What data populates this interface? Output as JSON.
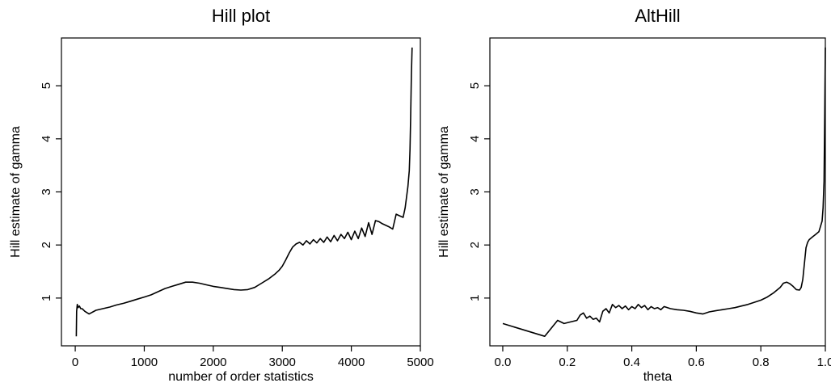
{
  "chart_data": [
    {
      "type": "line",
      "title": "Hill plot",
      "xlabel": "number of order statistics",
      "ylabel": "Hill estimate of gamma",
      "xlim": [
        -200,
        5000
      ],
      "ylim": [
        0.1,
        5.9
      ],
      "xticks": [
        0,
        1000,
        2000,
        3000,
        4000,
        5000
      ],
      "yticks": [
        1,
        2,
        3,
        4,
        5
      ],
      "xtick_labels": [
        "0",
        "1000",
        "2000",
        "3000",
        "4000",
        "5000"
      ],
      "ytick_labels": [
        "1",
        "2",
        "3",
        "4",
        "5"
      ],
      "grid": false,
      "x": [
        15,
        20,
        30,
        40,
        60,
        80,
        100,
        140,
        200,
        300,
        400,
        500,
        600,
        700,
        800,
        900,
        1000,
        1100,
        1200,
        1300,
        1400,
        1500,
        1600,
        1700,
        1800,
        1900,
        2000,
        2100,
        2200,
        2300,
        2400,
        2500,
        2600,
        2700,
        2800,
        2900,
        2950,
        3000,
        3050,
        3100,
        3150,
        3200,
        3250,
        3300,
        3350,
        3400,
        3450,
        3500,
        3550,
        3600,
        3650,
        3700,
        3750,
        3800,
        3850,
        3900,
        3950,
        4000,
        4050,
        4100,
        4150,
        4200,
        4250,
        4300,
        4350,
        4400,
        4450,
        4500,
        4550,
        4600,
        4650,
        4700,
        4750,
        4780,
        4800,
        4820,
        4840,
        4850,
        4860,
        4870,
        4880
      ],
      "y": [
        0.28,
        0.75,
        0.88,
        0.82,
        0.85,
        0.8,
        0.8,
        0.75,
        0.7,
        0.77,
        0.8,
        0.83,
        0.87,
        0.9,
        0.94,
        0.98,
        1.02,
        1.06,
        1.12,
        1.18,
        1.22,
        1.26,
        1.3,
        1.3,
        1.28,
        1.25,
        1.22,
        1.2,
        1.18,
        1.16,
        1.15,
        1.16,
        1.2,
        1.28,
        1.36,
        1.46,
        1.52,
        1.6,
        1.72,
        1.85,
        1.96,
        2.02,
        2.05,
        2.0,
        2.08,
        2.02,
        2.1,
        2.04,
        2.12,
        2.05,
        2.15,
        2.06,
        2.18,
        2.08,
        2.2,
        2.12,
        2.24,
        2.1,
        2.26,
        2.12,
        2.32,
        2.16,
        2.42,
        2.2,
        2.46,
        2.44,
        2.4,
        2.37,
        2.34,
        2.3,
        2.58,
        2.55,
        2.52,
        2.7,
        2.9,
        3.1,
        3.4,
        3.8,
        4.4,
        5.2,
        5.72
      ]
    },
    {
      "type": "line",
      "title": "AltHill",
      "xlabel": "theta",
      "ylabel": "Hill estimate of gamma",
      "xlim": [
        -0.04,
        1.0
      ],
      "ylim": [
        0.1,
        5.9
      ],
      "xticks": [
        0.0,
        0.2,
        0.4,
        0.6,
        0.8,
        1.0
      ],
      "yticks": [
        1,
        2,
        3,
        4,
        5
      ],
      "xtick_labels": [
        "0.0",
        "0.2",
        "0.4",
        "0.6",
        "0.8",
        "1.0"
      ],
      "ytick_labels": [
        "1",
        "2",
        "3",
        "4",
        "5"
      ],
      "grid": false,
      "x": [
        0.0,
        0.13,
        0.17,
        0.19,
        0.21,
        0.23,
        0.24,
        0.25,
        0.26,
        0.27,
        0.28,
        0.29,
        0.3,
        0.31,
        0.32,
        0.33,
        0.34,
        0.35,
        0.36,
        0.37,
        0.38,
        0.39,
        0.4,
        0.41,
        0.42,
        0.43,
        0.44,
        0.45,
        0.46,
        0.47,
        0.48,
        0.49,
        0.5,
        0.52,
        0.54,
        0.56,
        0.58,
        0.6,
        0.62,
        0.64,
        0.66,
        0.68,
        0.7,
        0.72,
        0.74,
        0.76,
        0.78,
        0.8,
        0.82,
        0.84,
        0.86,
        0.87,
        0.88,
        0.89,
        0.9,
        0.91,
        0.92,
        0.925,
        0.93,
        0.935,
        0.94,
        0.945,
        0.95,
        0.96,
        0.97,
        0.98,
        0.985,
        0.99,
        0.993,
        0.996,
        0.998,
        1.0
      ],
      "y": [
        0.52,
        0.28,
        0.58,
        0.52,
        0.55,
        0.58,
        0.68,
        0.72,
        0.62,
        0.66,
        0.6,
        0.62,
        0.55,
        0.75,
        0.8,
        0.72,
        0.88,
        0.82,
        0.86,
        0.8,
        0.85,
        0.78,
        0.84,
        0.8,
        0.88,
        0.82,
        0.86,
        0.78,
        0.84,
        0.8,
        0.82,
        0.78,
        0.84,
        0.8,
        0.78,
        0.77,
        0.75,
        0.72,
        0.7,
        0.74,
        0.76,
        0.78,
        0.8,
        0.82,
        0.85,
        0.88,
        0.92,
        0.96,
        1.02,
        1.1,
        1.2,
        1.28,
        1.3,
        1.27,
        1.22,
        1.16,
        1.15,
        1.2,
        1.35,
        1.65,
        1.95,
        2.05,
        2.1,
        2.15,
        2.2,
        2.25,
        2.35,
        2.45,
        2.7,
        3.2,
        4.4,
        5.72
      ]
    }
  ]
}
